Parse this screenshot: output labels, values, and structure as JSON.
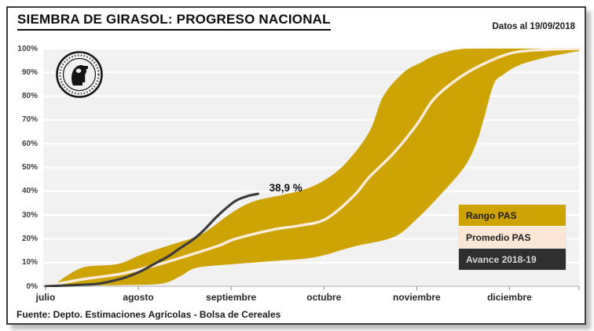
{
  "header": {
    "title": "SIEMBRA DE GIRASOL: PROGRESO NACIONAL",
    "date_note": "Datos al 19/09/2018"
  },
  "footer": {
    "source": "Fuente: Depto. Estimaciones Agrícolas - Bolsa de Cereales"
  },
  "logo": {
    "name": "bolsa-de-cereales-seal"
  },
  "colors": {
    "band": "#cea404",
    "promedio_line": "#fbeddd",
    "avance_line": "#3a3a3a",
    "plot_bg": "#f1f1f1",
    "grid": "#ffffff",
    "axis_line": "#c6c6c6",
    "tick": "#9f9f9f",
    "legend_rango_bg": "#cea404",
    "legend_rango_fg": "#1f1f1f",
    "legend_promedio_bg": "#fbe5d3",
    "legend_promedio_fg": "#1f1f1f",
    "legend_avance_bg": "#2f2f2f",
    "legend_avance_fg": "#d9d9d9"
  },
  "legend": {
    "items": [
      {
        "label": "Rango PAS",
        "bg": "#cea404",
        "fg": "#1f1f1f"
      },
      {
        "label": "Promedio PAS",
        "bg": "#fbe5d3",
        "fg": "#1f1f1f"
      },
      {
        "label": "Avance 2018-19",
        "bg": "#2f2f2f",
        "fg": "#d9d9d9"
      }
    ]
  },
  "chart_data": {
    "type": "area",
    "title": "SIEMBRA DE GIRASOL: PROGRESO NACIONAL",
    "x_axis": {
      "tick_labels": [
        "julio",
        "agosto",
        "septiembre",
        "octubre",
        "noviembre",
        "diciembre"
      ],
      "tick_month_units": [
        0,
        1,
        2,
        3,
        4,
        5,
        5.75
      ],
      "range_month_units": [
        0,
        5.75
      ]
    },
    "y_axis": {
      "min": 0,
      "max": 100,
      "step": 10,
      "format": "percent",
      "tick_labels": [
        "0%",
        "10%",
        "20%",
        "30%",
        "40%",
        "50%",
        "60%",
        "70%",
        "80%",
        "90%",
        "100%"
      ]
    },
    "grid": "horizontal-white",
    "legend_position": "inside-right",
    "series": [
      {
        "name": "Rango PAS",
        "type": "band",
        "color": "#cea404",
        "points_max": [
          [
            0,
            0
          ],
          [
            0.1,
            1
          ],
          [
            0.23,
            4.5
          ],
          [
            0.36,
            7.3
          ],
          [
            0.48,
            8.5
          ],
          [
            0.78,
            9.4
          ],
          [
            1.03,
            13.3
          ],
          [
            1.29,
            16.7
          ],
          [
            1.63,
            21
          ],
          [
            1.8,
            25
          ],
          [
            1.97,
            30
          ],
          [
            2.14,
            34
          ],
          [
            2.31,
            36.5
          ],
          [
            2.56,
            38.5
          ],
          [
            2.81,
            41
          ],
          [
            3.02,
            45
          ],
          [
            3.24,
            52
          ],
          [
            3.49,
            65
          ],
          [
            3.64,
            80
          ],
          [
            3.86,
            90
          ],
          [
            4.04,
            94
          ],
          [
            4.19,
            97
          ],
          [
            4.42,
            99.5
          ],
          [
            4.68,
            100
          ],
          [
            5.75,
            100
          ]
        ],
        "points_min": [
          [
            0,
            0
          ],
          [
            0.36,
            0.3
          ],
          [
            0.82,
            0.5
          ],
          [
            1.25,
            1.1
          ],
          [
            1.46,
            4.4
          ],
          [
            1.63,
            7.8
          ],
          [
            2.05,
            9.4
          ],
          [
            2.47,
            10.7
          ],
          [
            2.9,
            12.2
          ],
          [
            3.32,
            16.7
          ],
          [
            3.75,
            20.7
          ],
          [
            4.0,
            28.3
          ],
          [
            4.25,
            38.3
          ],
          [
            4.51,
            50
          ],
          [
            4.64,
            60
          ],
          [
            4.72,
            70
          ],
          [
            4.83,
            85
          ],
          [
            4.93,
            89
          ],
          [
            5.1,
            93
          ],
          [
            5.36,
            96
          ],
          [
            5.61,
            98
          ],
          [
            5.75,
            99
          ]
        ]
      },
      {
        "name": "Promedio PAS",
        "type": "line",
        "color": "#fbeddd",
        "points": [
          [
            0,
            0
          ],
          [
            0.36,
            2.7
          ],
          [
            0.78,
            5
          ],
          [
            1.03,
            7.3
          ],
          [
            1.29,
            10
          ],
          [
            1.63,
            14.1
          ],
          [
            1.88,
            17.3
          ],
          [
            2.05,
            20
          ],
          [
            2.47,
            24
          ],
          [
            2.73,
            25.5
          ],
          [
            3.02,
            28.3
          ],
          [
            3.32,
            38
          ],
          [
            3.49,
            46
          ],
          [
            3.75,
            56
          ],
          [
            4.0,
            68
          ],
          [
            4.19,
            79
          ],
          [
            4.48,
            88.3
          ],
          [
            4.76,
            94.3
          ],
          [
            5.04,
            98.3
          ],
          [
            5.36,
            99.5
          ],
          [
            5.75,
            100
          ]
        ]
      },
      {
        "name": "Avance 2018-19",
        "type": "line",
        "color": "#3a3a3a",
        "end_value_pct": 38.9,
        "points": [
          [
            0,
            0
          ],
          [
            0.19,
            0.3
          ],
          [
            0.36,
            0.6
          ],
          [
            0.57,
            1.1
          ],
          [
            0.78,
            2.8
          ],
          [
            0.91,
            4.4
          ],
          [
            1.03,
            6.4
          ],
          [
            1.2,
            10
          ],
          [
            1.33,
            12.8
          ],
          [
            1.46,
            16.3
          ],
          [
            1.58,
            19.4
          ],
          [
            1.69,
            23
          ],
          [
            1.82,
            28.3
          ],
          [
            1.92,
            32
          ],
          [
            2.05,
            36
          ],
          [
            2.18,
            38
          ],
          [
            2.29,
            38.9
          ]
        ]
      }
    ],
    "annotation": {
      "text": "38,9 %",
      "x_month_units": 2.36,
      "y_pct": 41
    }
  }
}
